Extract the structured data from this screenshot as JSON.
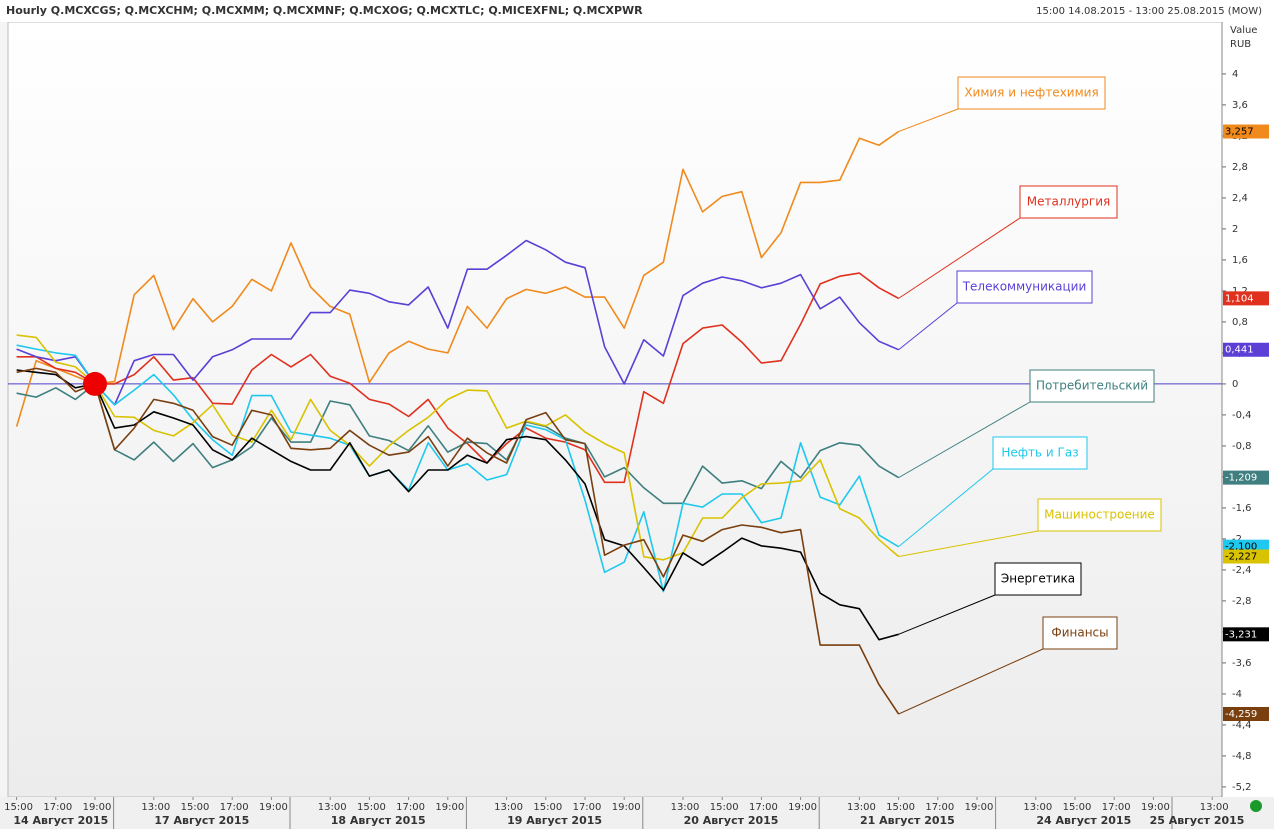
{
  "chart_data": {
    "type": "line",
    "title": "Hourly Q.MCXCGS; Q.MCXCHM; Q.MCXMM; Q.MCXMNF; Q.MCXOG; Q.MCXTLC; Q.MICEXFNL; Q.MCXPWR",
    "date_range": "15:00 14.08.2015 - 13:00 25.08.2015 (MOW)",
    "ylabel": "Value",
    "yunit": "RUB",
    "categories": [
      "15:00",
      null,
      "17:00",
      null,
      "19:00",
      null,
      null,
      "13:00",
      null,
      "15:00",
      null,
      "17:00",
      null,
      "19:00",
      null,
      null,
      "13:00",
      null,
      "15:00",
      null,
      "17:00",
      null,
      "19:00",
      null,
      null,
      "13:00",
      null,
      "15:00",
      null,
      "17:00",
      null,
      "19:00",
      null,
      null,
      "13:00",
      null,
      "15:00",
      null,
      "17:00",
      null,
      "19:00",
      null,
      null,
      "13:00",
      null,
      "15:00",
      null,
      "17:00",
      null,
      "19:00",
      null,
      null,
      "13:00",
      null,
      "15:00",
      null,
      "17:00",
      null,
      "19:00",
      null,
      null,
      "13:00"
    ],
    "days": [
      "14 Август 2015",
      "17 Август 2015",
      "18 Август 2015",
      "19 Август 2015",
      "20 Август 2015",
      "21 Август 2015",
      "24 Август 2015",
      "25 Август 2015"
    ],
    "ylim": [
      -5.33,
      4.67
    ],
    "yticks": [
      4,
      {
        "value": 3.6,
        "label": "3,6"
      },
      {
        "value": 3.2,
        "label": "3,2"
      },
      {
        "value": 2.8,
        "label": "2,8"
      },
      {
        "value": 2.4,
        "label": "2,4"
      },
      2,
      {
        "value": 1.6,
        "label": "1,6"
      },
      {
        "value": 1.2,
        "label": "1,2"
      },
      {
        "value": 0.8,
        "label": "0,8"
      },
      {
        "value": 0.4,
        "label": "0,4"
      },
      0,
      {
        "value": -0.4,
        "label": "-0,4"
      },
      {
        "value": -0.8,
        "label": "-0,8"
      },
      {
        "value": -1.2,
        "label": "-1,2"
      },
      {
        "value": -1.6,
        "label": "-1,6"
      },
      -2,
      {
        "value": -2.4,
        "label": "-2,4"
      },
      {
        "value": -2.8,
        "label": "-2,8"
      },
      {
        "value": -3.2,
        "label": "-3,2"
      },
      {
        "value": -3.6,
        "label": "-3,6"
      },
      -4,
      {
        "value": -4.4,
        "label": "-4,4"
      },
      {
        "value": -4.8,
        "label": "-4,8"
      },
      {
        "value": -5.2,
        "label": "-5,2"
      }
    ],
    "hline": 0,
    "series": [
      {
        "name": "Химия и нефтехимия",
        "color": "#f08a1c",
        "values": [
          -0.55,
          0.3,
          0.2,
          0.1,
          0,
          0.03,
          1.15,
          1.4,
          0.7,
          1.1,
          0.8,
          1.0,
          1.35,
          1.2,
          1.82,
          1.25,
          1.0,
          0.9,
          0.02,
          0.4,
          0.55,
          0.45,
          0.4,
          1.0,
          0.72,
          1.1,
          1.22,
          1.17,
          1.25,
          1.12,
          1.12,
          0.72,
          1.4,
          1.57,
          2.77,
          2.22,
          2.42,
          2.48,
          1.63,
          1.95,
          2.6,
          2.6,
          2.63,
          3.17,
          3.08,
          3.257,
          null,
          null,
          null,
          null,
          null,
          null,
          null,
          null,
          null,
          null,
          null,
          null,
          null,
          null,
          null,
          null
        ],
        "value_labels": [
          null,
          null,
          null,
          null,
          null,
          null,
          null,
          null,
          null,
          null,
          null,
          null,
          null,
          null,
          null,
          null,
          null,
          null,
          null,
          null,
          null,
          null,
          null,
          null,
          null,
          null,
          null,
          null,
          null,
          null,
          null,
          null,
          null,
          null,
          null,
          null,
          null,
          null,
          null,
          null,
          null,
          null,
          null,
          null,
          null,
          "3,257",
          null,
          null,
          null,
          null,
          null,
          null,
          null,
          null,
          null,
          null,
          null,
          null,
          null,
          null,
          null,
          null
        ]
      },
      {
        "name": "Металлургия",
        "color": "#e0301e",
        "values": [
          0.35,
          0.35,
          0.2,
          0.15,
          0,
          0,
          0.12,
          0.35,
          0.05,
          0.08,
          -0.25,
          -0.26,
          0.18,
          0.38,
          0.22,
          0.38,
          0.1,
          0.01,
          -0.2,
          -0.26,
          -0.42,
          -0.2,
          -0.57,
          -0.77,
          -1.02,
          -0.77,
          -0.57,
          -0.7,
          -0.75,
          -0.85,
          -1.27,
          -1.27,
          -0.1,
          -0.25,
          0.52,
          0.72,
          0.76,
          0.54,
          0.27,
          0.3,
          0.77,
          1.29,
          1.39,
          1.43,
          1.24,
          1.104,
          null,
          null,
          null,
          null,
          null,
          null,
          null,
          null,
          null,
          null,
          null,
          null,
          null,
          null,
          null,
          null
        ],
        "value_labels": [
          null,
          null,
          null,
          null,
          null,
          null,
          null,
          null,
          null,
          null,
          null,
          null,
          null,
          null,
          null,
          null,
          null,
          null,
          null,
          null,
          null,
          null,
          null,
          null,
          null,
          null,
          null,
          null,
          null,
          null,
          null,
          null,
          null,
          null,
          null,
          null,
          null,
          null,
          null,
          null,
          null,
          null,
          null,
          null,
          null,
          "1,104",
          null,
          null,
          null,
          null,
          null,
          null,
          null,
          null,
          null,
          null,
          null,
          null,
          null,
          null,
          null,
          null
        ]
      },
      {
        "name": "Телекоммуникации",
        "color": "#5b3fd6",
        "values": [
          0.45,
          0.35,
          0.3,
          0.35,
          0,
          -0.27,
          0.3,
          0.38,
          0.38,
          0.05,
          0.35,
          0.44,
          0.58,
          0.58,
          0.58,
          0.92,
          0.92,
          1.21,
          1.17,
          1.06,
          1.02,
          1.25,
          0.72,
          1.48,
          1.48,
          1.66,
          1.85,
          1.73,
          1.57,
          1.5,
          0.48,
          0,
          0.57,
          0.36,
          1.14,
          1.3,
          1.38,
          1.33,
          1.24,
          1.3,
          1.41,
          0.97,
          1.12,
          0.79,
          0.55,
          0.441,
          null,
          null,
          null,
          null,
          null,
          null,
          null,
          null,
          null,
          null,
          null,
          null,
          null,
          null,
          null,
          null
        ],
        "value_labels": [
          null,
          null,
          null,
          null,
          null,
          null,
          null,
          null,
          null,
          null,
          null,
          null,
          null,
          null,
          null,
          null,
          null,
          null,
          null,
          null,
          null,
          null,
          null,
          null,
          null,
          null,
          null,
          null,
          null,
          null,
          null,
          null,
          null,
          null,
          null,
          null,
          null,
          null,
          null,
          null,
          null,
          null,
          null,
          null,
          null,
          "0,441",
          null,
          null,
          null,
          null,
          null,
          null,
          null,
          null,
          null,
          null,
          null,
          null,
          null,
          null,
          null,
          null
        ]
      },
      {
        "name": "Потребительский",
        "color": "#3f7f7f",
        "values": [
          -0.12,
          -0.17,
          -0.05,
          -0.2,
          0,
          -0.85,
          -0.98,
          -0.75,
          -1.0,
          -0.77,
          -1.08,
          -0.98,
          -0.81,
          -0.44,
          -0.75,
          -0.75,
          -0.22,
          -0.27,
          -0.67,
          -0.73,
          -0.86,
          -0.54,
          -0.88,
          -0.75,
          -0.77,
          -0.98,
          -0.49,
          -0.55,
          -0.7,
          -0.77,
          -1.2,
          -1.08,
          -1.34,
          -1.54,
          -1.54,
          -1.06,
          -1.28,
          -1.25,
          -1.35,
          -1.0,
          -1.21,
          -0.86,
          -0.76,
          -0.79,
          -1.06,
          -1.209,
          null,
          null,
          null,
          null,
          null,
          null,
          null,
          null,
          null,
          null,
          null,
          null,
          null,
          null,
          null,
          null
        ],
        "value_labels": [
          null,
          null,
          null,
          null,
          null,
          null,
          null,
          null,
          null,
          null,
          null,
          null,
          null,
          null,
          null,
          null,
          null,
          null,
          null,
          null,
          null,
          null,
          null,
          null,
          null,
          null,
          null,
          null,
          null,
          null,
          null,
          null,
          null,
          null,
          null,
          null,
          null,
          null,
          null,
          null,
          null,
          null,
          null,
          null,
          null,
          "-1,209",
          null,
          null,
          null,
          null,
          null,
          null,
          null,
          null,
          null,
          null,
          null,
          null,
          null,
          null,
          null,
          null
        ]
      },
      {
        "name": "Нефть и Газ",
        "color": "#1ec8ee",
        "values": [
          0.5,
          0.45,
          0.4,
          0.37,
          0,
          -0.27,
          -0.08,
          0.12,
          -0.14,
          -0.46,
          -0.72,
          -0.92,
          -0.15,
          -0.15,
          -0.62,
          -0.66,
          -0.7,
          -0.79,
          -1.19,
          -1.11,
          -1.37,
          -0.76,
          -1.11,
          -1.03,
          -1.24,
          -1.17,
          -0.53,
          -0.59,
          -0.72,
          -1.5,
          -2.43,
          -2.3,
          -1.65,
          -2.68,
          -1.54,
          -1.59,
          -1.42,
          -1.42,
          -1.79,
          -1.73,
          -0.76,
          -1.46,
          -1.56,
          -1.19,
          -1.95,
          -2.1,
          null,
          null,
          null,
          null,
          null,
          null,
          null,
          null,
          null,
          null,
          null,
          null,
          null,
          null,
          null,
          null
        ],
        "value_labels": [
          null,
          null,
          null,
          null,
          null,
          null,
          null,
          null,
          null,
          null,
          null,
          null,
          null,
          null,
          null,
          null,
          null,
          null,
          null,
          null,
          null,
          null,
          null,
          null,
          null,
          null,
          null,
          null,
          null,
          null,
          null,
          null,
          null,
          null,
          null,
          null,
          null,
          null,
          null,
          null,
          null,
          null,
          null,
          null,
          null,
          "-2,100",
          null,
          null,
          null,
          null,
          null,
          null,
          null,
          null,
          null,
          null,
          null,
          null,
          null,
          null,
          null,
          null
        ]
      },
      {
        "name": "Машиностроение",
        "color": "#d9c200",
        "values": [
          0.63,
          0.6,
          0.28,
          0.22,
          0,
          -0.42,
          -0.43,
          -0.6,
          -0.67,
          -0.5,
          -0.27,
          -0.66,
          -0.75,
          -0.34,
          -0.72,
          -0.2,
          -0.6,
          -0.79,
          -1.06,
          -0.8,
          -0.6,
          -0.43,
          -0.2,
          -0.08,
          -0.09,
          -0.57,
          -0.48,
          -0.54,
          -0.4,
          -0.62,
          -0.77,
          -0.89,
          -2.23,
          -2.27,
          -2.18,
          -1.73,
          -1.73,
          -1.47,
          -1.29,
          -1.28,
          -1.25,
          -0.98,
          -1.61,
          -1.73,
          -2.01,
          -2.227,
          null,
          null,
          null,
          null,
          null,
          null,
          null,
          null,
          null,
          null,
          null,
          null,
          null,
          null,
          null,
          null
        ],
        "value_labels": [
          null,
          null,
          null,
          null,
          null,
          null,
          null,
          null,
          null,
          null,
          null,
          null,
          null,
          null,
          null,
          null,
          null,
          null,
          null,
          null,
          null,
          null,
          null,
          null,
          null,
          null,
          null,
          null,
          null,
          null,
          null,
          null,
          null,
          null,
          null,
          null,
          null,
          null,
          null,
          null,
          null,
          null,
          null,
          null,
          null,
          "-2,227",
          null,
          null,
          null,
          null,
          null,
          null,
          null,
          null,
          null,
          null,
          null,
          null,
          null,
          null,
          null,
          null
        ]
      },
      {
        "name": "Энергетика",
        "color": "#000000",
        "values": [
          0.18,
          0.15,
          0.12,
          -0.05,
          0,
          -0.57,
          -0.53,
          -0.36,
          -0.44,
          -0.53,
          -0.85,
          -0.98,
          -0.7,
          -0.85,
          -1.0,
          -1.11,
          -1.11,
          -0.76,
          -1.19,
          -1.11,
          -1.39,
          -1.11,
          -1.11,
          -0.92,
          -1.02,
          -0.72,
          -0.68,
          -0.72,
          -0.98,
          -1.29,
          -2.01,
          -2.09,
          -2.37,
          -2.66,
          -2.18,
          -2.34,
          -2.17,
          -1.99,
          -2.09,
          -2.12,
          -2.17,
          -2.7,
          -2.85,
          -2.9,
          -3.3,
          -3.231,
          null,
          null,
          null,
          null,
          null,
          null,
          null,
          null,
          null,
          null,
          null,
          null,
          null,
          null,
          null,
          null
        ],
        "value_labels": [
          null,
          null,
          null,
          null,
          null,
          null,
          null,
          null,
          null,
          null,
          null,
          null,
          null,
          null,
          null,
          null,
          null,
          null,
          null,
          null,
          null,
          null,
          null,
          null,
          null,
          null,
          null,
          null,
          null,
          null,
          null,
          null,
          null,
          null,
          null,
          null,
          null,
          null,
          null,
          null,
          null,
          null,
          null,
          null,
          null,
          "-3,231",
          null,
          null,
          null,
          null,
          null,
          null,
          null,
          null,
          null,
          null,
          null,
          null,
          null,
          null,
          null,
          null
        ]
      },
      {
        "name": "Финансы",
        "color": "#7a3f0f",
        "values": [
          0.15,
          0.2,
          0.15,
          -0.1,
          0,
          -0.85,
          -0.57,
          -0.2,
          -0.25,
          -0.34,
          -0.68,
          -0.79,
          -0.34,
          -0.4,
          -0.83,
          -0.85,
          -0.83,
          -0.6,
          -0.79,
          -0.92,
          -0.88,
          -0.68,
          -1.06,
          -0.7,
          -0.89,
          -1.02,
          -0.46,
          -0.37,
          -0.72,
          -0.77,
          -2.21,
          -2.08,
          -2.01,
          -2.49,
          -1.95,
          -2.03,
          -1.88,
          -1.82,
          -1.85,
          -1.92,
          -1.88,
          -3.37,
          -3.37,
          -3.37,
          -3.88,
          -4.259,
          null,
          null,
          null,
          null,
          null,
          null,
          null,
          null,
          null,
          null,
          null,
          null,
          null,
          null,
          null,
          null
        ],
        "value_labels": [
          null,
          null,
          null,
          null,
          null,
          null,
          null,
          null,
          null,
          null,
          null,
          null,
          null,
          null,
          null,
          null,
          null,
          null,
          null,
          null,
          null,
          null,
          null,
          null,
          null,
          null,
          null,
          null,
          null,
          null,
          null,
          null,
          null,
          null,
          null,
          null,
          null,
          null,
          null,
          null,
          null,
          null,
          null,
          null,
          null,
          "-4,259",
          null,
          null,
          null,
          null,
          null,
          null,
          null,
          null,
          null,
          null,
          null,
          null,
          null,
          null,
          null,
          null
        ]
      }
    ]
  }
}
